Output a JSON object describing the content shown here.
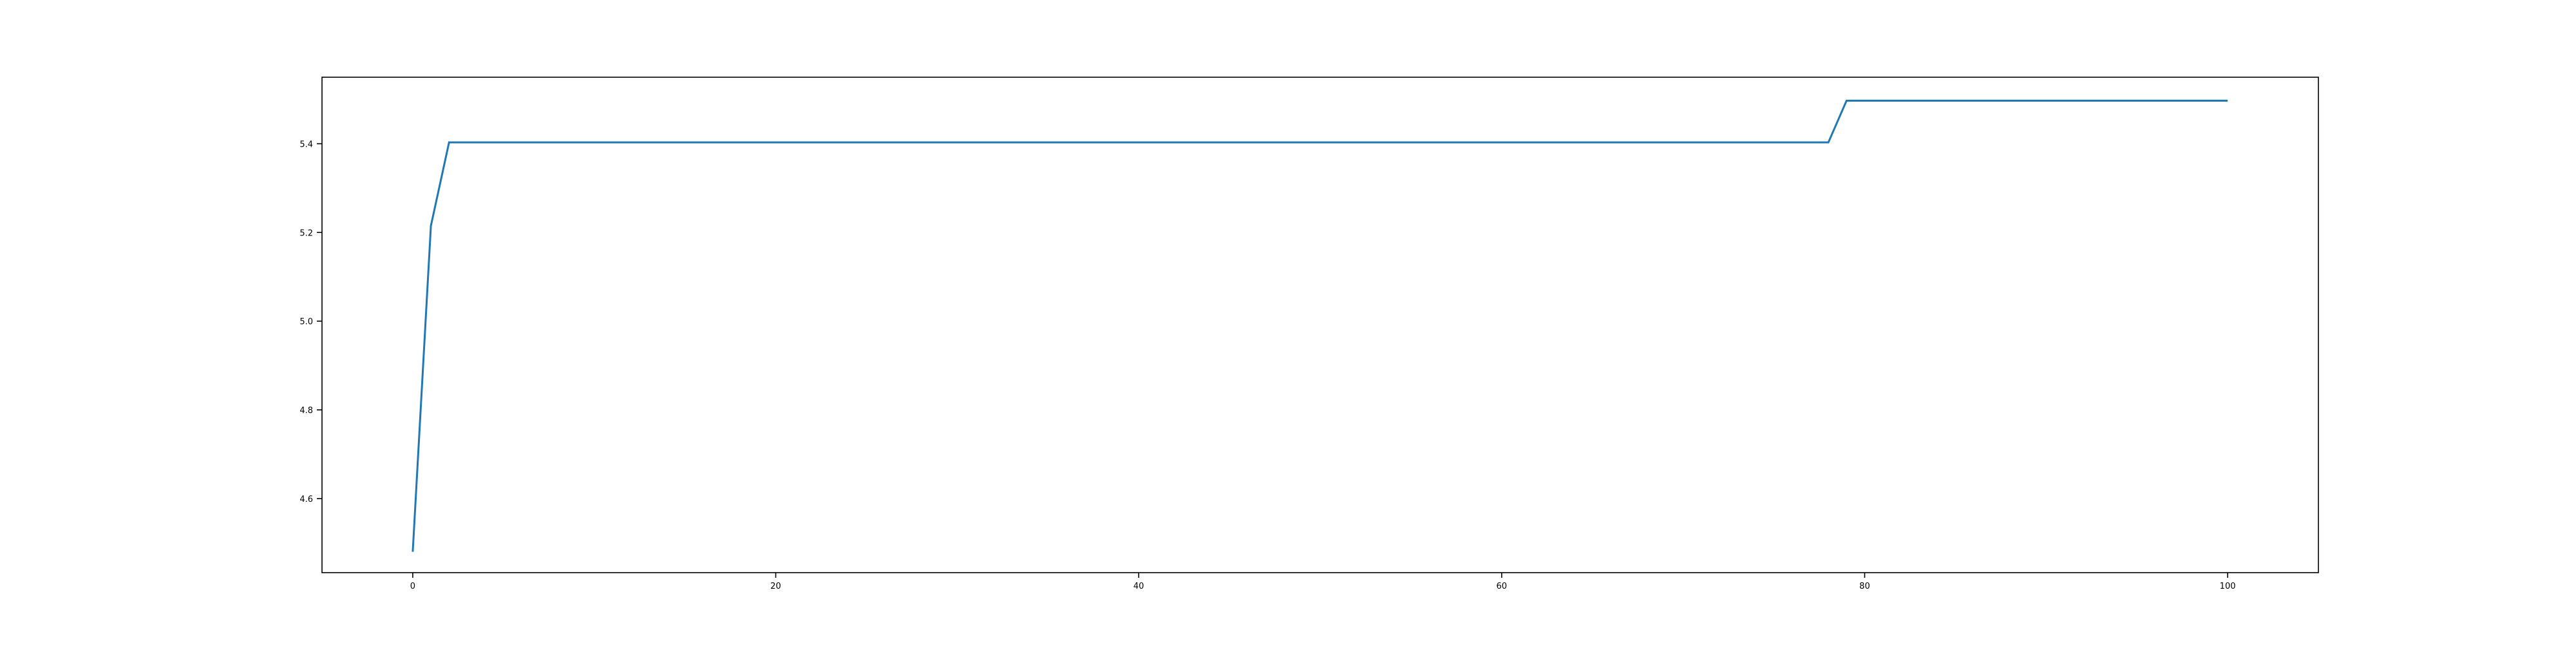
{
  "chart_data": {
    "type": "line",
    "title": "",
    "xlabel": "",
    "ylabel": "",
    "xlim": [
      -5,
      105
    ],
    "ylim": [
      4.433,
      5.55
    ],
    "xticks": [
      0,
      20,
      40,
      60,
      80,
      100
    ],
    "yticks": [
      4.6,
      4.8,
      5.0,
      5.2,
      5.4
    ],
    "xtick_labels": [
      "0",
      "20",
      "40",
      "60",
      "80",
      "100"
    ],
    "ytick_labels": [
      "4.6",
      "4.8",
      "5.0",
      "5.2",
      "5.4"
    ],
    "grid": false,
    "legend": false,
    "series": [
      {
        "color": "#1f77b4",
        "x": [
          0,
          1,
          2,
          78,
          79,
          100
        ],
        "y": [
          4.48,
          5.215,
          5.403,
          5.403,
          5.497,
          5.497
        ]
      }
    ]
  }
}
